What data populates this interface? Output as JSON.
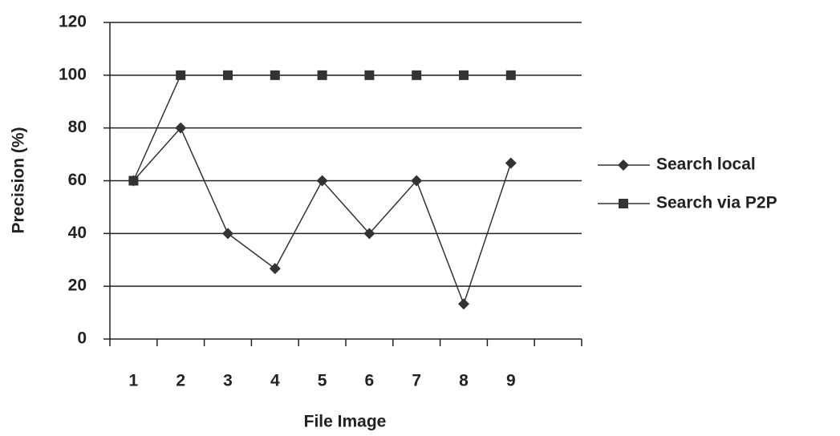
{
  "chart_data": {
    "type": "line",
    "x_label": "File Image",
    "y_label": "Precision (%)",
    "categories": [
      "1",
      "2",
      "3",
      "4",
      "5",
      "6",
      "7",
      "8",
      "9",
      null
    ],
    "series": [
      {
        "name": "Search local",
        "color": "#333333",
        "marker": "diamond",
        "values": [
          60,
          80,
          40,
          26.7,
          60,
          40,
          60,
          13.3,
          66.7,
          null
        ]
      },
      {
        "name": "Search via P2P",
        "color": "#333333",
        "marker": "square",
        "values": [
          60,
          100,
          100,
          100,
          100,
          100,
          100,
          100,
          100,
          null
        ]
      }
    ],
    "ylim": [
      0,
      120
    ],
    "yticks": [
      0,
      20,
      40,
      60,
      80,
      100,
      120
    ],
    "grid": true,
    "legend": "right"
  }
}
